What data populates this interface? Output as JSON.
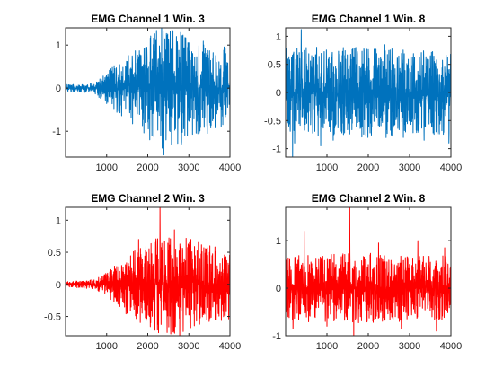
{
  "chart_data": [
    {
      "type": "line",
      "title": "EMG Channel 1 Win. 3",
      "xlim": [
        0,
        4000
      ],
      "ylim": [
        -1.6,
        1.4
      ],
      "xticks": [
        1000,
        2000,
        3000,
        4000
      ],
      "yticks": [
        -1,
        0,
        1
      ],
      "series": [
        {
          "color": "#0072BD",
          "noise_floor": 0.02,
          "envelope": [
            [
              0,
              0.04
            ],
            [
              700,
              0.06
            ],
            [
              1000,
              0.2
            ],
            [
              1500,
              0.4
            ],
            [
              2000,
              0.6
            ],
            [
              2300,
              0.75
            ],
            [
              2800,
              0.7
            ],
            [
              3500,
              0.55
            ],
            [
              4000,
              0.5
            ]
          ],
          "peaks": [
            [
              2340,
              1.4
            ],
            [
              2390,
              -1.55
            ],
            [
              2580,
              -1.3
            ],
            [
              2700,
              1.2
            ],
            [
              2820,
              -1.3
            ],
            [
              3000,
              1.05
            ],
            [
              2050,
              -1.2
            ],
            [
              1980,
              0.95
            ],
            [
              3450,
              -1.05
            ],
            [
              3900,
              0.8
            ]
          ]
        }
      ]
    },
    {
      "type": "line",
      "title": "EMG Channel 1 Win. 8",
      "xlim": [
        0,
        4000
      ],
      "ylim": [
        -1.15,
        1.15
      ],
      "xticks": [
        1000,
        2000,
        3000,
        4000
      ],
      "yticks": [
        -1,
        -0.5,
        0,
        0.5,
        1
      ],
      "series": [
        {
          "color": "#0072BD",
          "noise_floor": 0.05,
          "envelope": [
            [
              0,
              0.4
            ],
            [
              1000,
              0.42
            ],
            [
              2000,
              0.42
            ],
            [
              3000,
              0.4
            ],
            [
              4000,
              0.4
            ]
          ],
          "peaks": [
            [
              380,
              1.12
            ],
            [
              170,
              -1.15
            ],
            [
              220,
              -0.9
            ],
            [
              850,
              -0.95
            ],
            [
              1150,
              -0.85
            ],
            [
              1700,
              0.8
            ],
            [
              2400,
              0.85
            ],
            [
              2850,
              -0.8
            ],
            [
              3350,
              -0.85
            ],
            [
              3600,
              0.55
            ],
            [
              3950,
              -0.9
            ]
          ]
        }
      ]
    },
    {
      "type": "line",
      "title": "EMG Channel 2 Win. 3",
      "xlim": [
        0,
        4000
      ],
      "ylim": [
        -0.8,
        1.2
      ],
      "xticks": [
        1000,
        2000,
        3000,
        4000
      ],
      "yticks": [
        -0.5,
        0,
        0.5,
        1
      ],
      "series": [
        {
          "color": "#FF0000",
          "noise_floor": 0.01,
          "envelope": [
            [
              0,
              0.02
            ],
            [
              700,
              0.04
            ],
            [
              1000,
              0.1
            ],
            [
              1500,
              0.25
            ],
            [
              2000,
              0.35
            ],
            [
              2300,
              0.42
            ],
            [
              2800,
              0.4
            ],
            [
              3400,
              0.32
            ],
            [
              4000,
              0.3
            ]
          ],
          "peaks": [
            [
              2300,
              1.2
            ],
            [
              2170,
              -0.7
            ],
            [
              2470,
              -0.75
            ],
            [
              2650,
              0.85
            ],
            [
              2780,
              -0.8
            ],
            [
              1780,
              0.7
            ],
            [
              3050,
              0.7
            ],
            [
              3500,
              -0.55
            ],
            [
              1500,
              -0.45
            ]
          ]
        }
      ]
    },
    {
      "type": "line",
      "title": "EMG Channel 2 Win. 8",
      "xlim": [
        0,
        4000
      ],
      "ylim": [
        -1,
        1.7
      ],
      "xticks": [
        1000,
        2000,
        3000,
        4000
      ],
      "yticks": [
        -1,
        0,
        1
      ],
      "series": [
        {
          "color": "#FF0000",
          "noise_floor": 0.04,
          "envelope": [
            [
              0,
              0.35
            ],
            [
              1000,
              0.38
            ],
            [
              2000,
              0.38
            ],
            [
              3000,
              0.36
            ],
            [
              4000,
              0.35
            ]
          ],
          "peaks": [
            [
              1550,
              1.7
            ],
            [
              1650,
              -1.0
            ],
            [
              450,
              1.2
            ],
            [
              180,
              -0.85
            ],
            [
              2250,
              0.95
            ],
            [
              2800,
              -0.85
            ],
            [
              3200,
              1.0
            ],
            [
              3650,
              -0.9
            ],
            [
              1000,
              -0.8
            ],
            [
              3850,
              0.85
            ]
          ]
        }
      ]
    }
  ]
}
